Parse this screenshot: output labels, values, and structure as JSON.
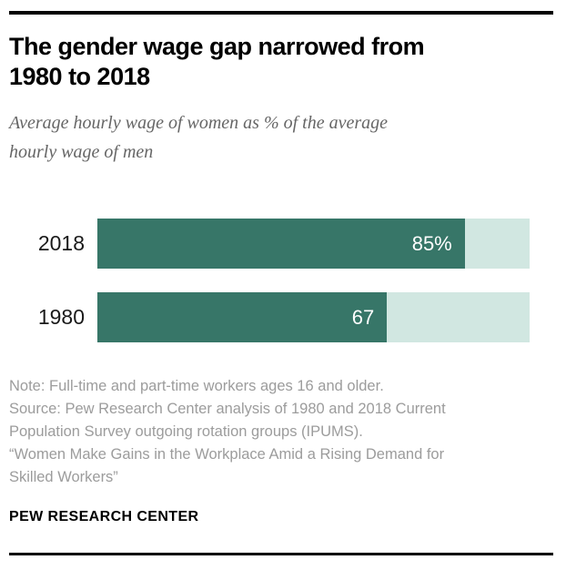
{
  "header": {
    "title": "The gender wage gap narrowed from 1980 to 2018",
    "subtitle": "Average hourly wage of women as % of the average hourly wage of men"
  },
  "chart_data": {
    "type": "bar",
    "orientation": "horizontal",
    "title": "The gender wage gap narrowed from 1980 to 2018",
    "subtitle": "Average hourly wage of women as % of the average hourly wage of men",
    "categories": [
      "2018",
      "1980"
    ],
    "values": [
      85,
      67
    ],
    "value_labels": [
      "85%",
      "67"
    ],
    "xlim": [
      0,
      100
    ],
    "grid": false,
    "legend": "none",
    "colors": {
      "fill": "#377668",
      "track": "#d1e7e1"
    }
  },
  "notes": {
    "lines": [
      "Note: Full-time and part-time workers ages 16 and older.",
      "Source: Pew Research Center analysis of 1980 and 2018 Current",
      "Population Survey outgoing rotation groups (IPUMS).",
      "“Women Make Gains in the Workplace Amid a Rising Demand for",
      "Skilled Workers”"
    ]
  },
  "footer": {
    "brand": "PEW RESEARCH CENTER"
  }
}
